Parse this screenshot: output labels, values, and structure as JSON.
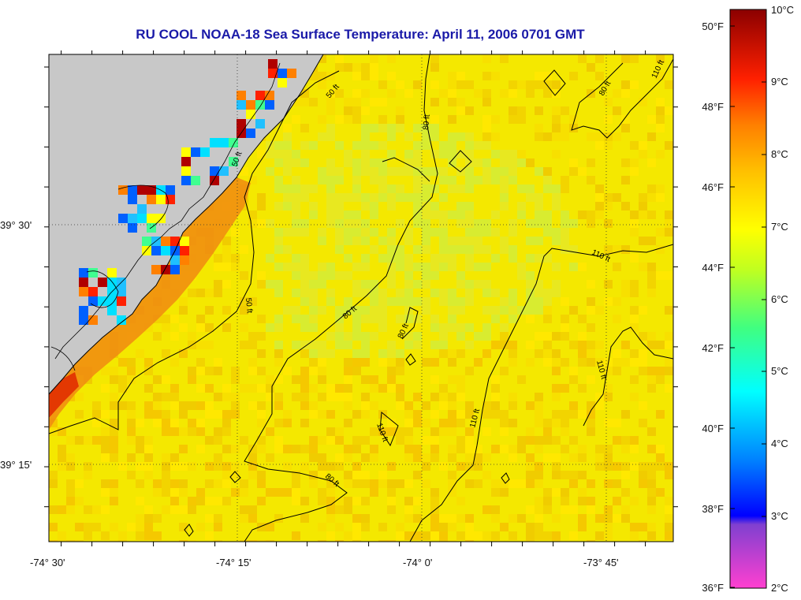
{
  "title": "RU COOL  NOAA-18  Sea Surface Temperature:  April 11, 2006 0701 GMT",
  "map": {
    "lon_labels": [
      "-74° 30'",
      "-74° 15'",
      "-74° 0'",
      "-73° 45'"
    ],
    "lat_labels": [
      "39° 30'",
      "39° 15'"
    ],
    "contour_labels": [
      "50 ft",
      "80 ft",
      "110 ft"
    ],
    "land_color": "#c8c8c8",
    "coastline_color": "#000000"
  },
  "colorbar": {
    "fahrenheit_labels": [
      "50°F",
      "48°F",
      "46°F",
      "44°F",
      "42°F",
      "40°F",
      "38°F",
      "36°F"
    ],
    "celsius_labels": [
      "10°C",
      "9°C",
      "8°C",
      "7°C",
      "6°C",
      "5°C",
      "4°C",
      "3°C",
      "2°C"
    ],
    "colors": [
      "#8b0000",
      "#ff0000",
      "#ff8000",
      "#ffd000",
      "#ffff00",
      "#80ff40",
      "#00ffff",
      "#0080ff",
      "#0000ff",
      "#ff40d0"
    ]
  }
}
